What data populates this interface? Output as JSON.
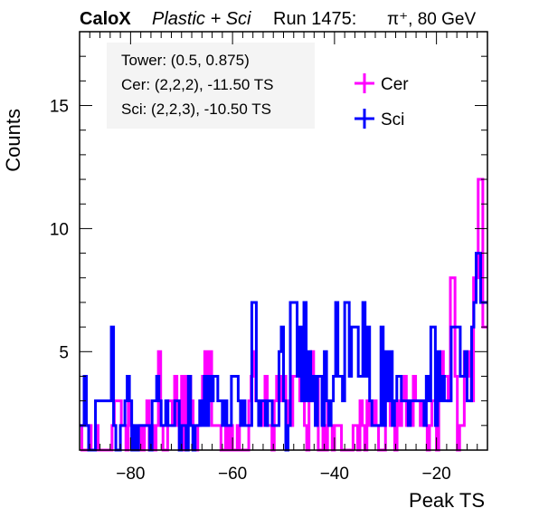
{
  "header": {
    "brand": "CaloX",
    "subtitle_italic": "Plastic + Sci",
    "run": "Run 1475:",
    "particle": "π⁺, 80 GeV"
  },
  "info": {
    "tower": "Tower: (0.5, 0.875)",
    "cer": "Cer: (2,2,2), -11.50 TS",
    "sci": "Sci: (2,2,3), -10.50 TS"
  },
  "chart_data": {
    "type": "step",
    "xlabel": "Peak TS",
    "ylabel": "Counts",
    "xlim": [
      -90,
      -10
    ],
    "ylim": [
      1,
      18
    ],
    "bin_width": 1,
    "bin_start": -90,
    "x_ticks": [
      -80,
      -60,
      -40,
      -20
    ],
    "x_tick_labels": [
      "−80",
      "−60",
      "−40",
      "−20"
    ],
    "y_ticks": [
      5,
      10,
      15
    ],
    "y_tick_labels": [
      "5",
      "10",
      "15"
    ],
    "legend_position": "top-right",
    "series": [
      {
        "name": "Cer",
        "color": "#ff00ff",
        "values": [
          2,
          1,
          1,
          1,
          2,
          1,
          1,
          2,
          1,
          1,
          1,
          1,
          1,
          1,
          2,
          3,
          3,
          3,
          2,
          2,
          1,
          3,
          2,
          1,
          1,
          1,
          2,
          1,
          2,
          3,
          1,
          2,
          1,
          2,
          5,
          2,
          1,
          1,
          3,
          3,
          2,
          4,
          2,
          1,
          4,
          1,
          4,
          4,
          3,
          1,
          1,
          2,
          3,
          4,
          5,
          4,
          5,
          2,
          2,
          2,
          2,
          1,
          1,
          2,
          1,
          2,
          1,
          1,
          2,
          1,
          1,
          1,
          1,
          3,
          4,
          5,
          3,
          3,
          2,
          3,
          4,
          2,
          2,
          1,
          3,
          4,
          4,
          3,
          4,
          3,
          2,
          2,
          4,
          4,
          5,
          3,
          5,
          2,
          1,
          3,
          5,
          3,
          4,
          1,
          1,
          2,
          1,
          3,
          2,
          1,
          2,
          2,
          2,
          1,
          1,
          1,
          1,
          1,
          2,
          2,
          1,
          3,
          2,
          1,
          3,
          2,
          2,
          3,
          2,
          1,
          1,
          1,
          4,
          3,
          2,
          2,
          1,
          3,
          2,
          3,
          4,
          2,
          3,
          2,
          4,
          3,
          3,
          2,
          3,
          2,
          1,
          2,
          3,
          3,
          1,
          4,
          5,
          4,
          4,
          3,
          8,
          8,
          4,
          1,
          2,
          2,
          5,
          4,
          5,
          3,
          8,
          8,
          12,
          12,
          6,
          6
        ]
      },
      {
        "name": "Sci",
        "color": "#0000ff",
        "values": [
          2,
          2,
          4,
          2,
          1,
          1,
          1,
          3,
          3,
          3,
          3,
          3,
          3,
          3,
          6,
          2,
          1,
          1,
          2,
          2,
          3,
          4,
          3,
          1,
          2,
          1,
          2,
          2,
          2,
          2,
          2,
          1,
          3,
          3,
          4,
          3,
          2,
          2,
          3,
          2,
          2,
          2,
          3,
          3,
          1,
          2,
          2,
          1,
          4,
          2,
          1,
          2,
          2,
          3,
          2,
          4,
          2,
          4,
          3,
          4,
          4,
          3,
          3,
          2,
          3,
          2,
          2,
          4,
          4,
          4,
          3,
          2,
          3,
          2,
          2,
          2,
          7,
          7,
          3,
          2,
          3,
          3,
          2,
          3,
          3,
          2,
          2,
          2,
          5,
          6,
          3,
          1,
          2,
          7,
          7,
          7,
          4,
          6,
          3,
          7,
          3,
          5,
          3,
          4,
          2,
          4,
          4,
          2,
          5,
          3,
          2,
          3,
          4,
          7,
          4,
          4,
          3,
          7,
          7,
          4,
          6,
          6,
          6,
          4,
          4,
          7,
          4,
          6,
          3,
          2,
          2,
          2,
          2,
          6,
          2,
          5,
          3,
          5,
          2,
          3,
          4,
          4,
          3,
          3,
          3,
          2,
          3,
          3,
          3,
          3,
          3,
          3,
          2,
          4,
          3,
          6,
          6,
          2,
          5,
          3,
          4,
          3,
          3,
          3,
          6,
          6,
          6,
          6,
          4,
          4,
          5,
          3,
          3,
          6,
          7,
          9,
          9,
          7,
          7,
          7
        ]
      }
    ]
  }
}
